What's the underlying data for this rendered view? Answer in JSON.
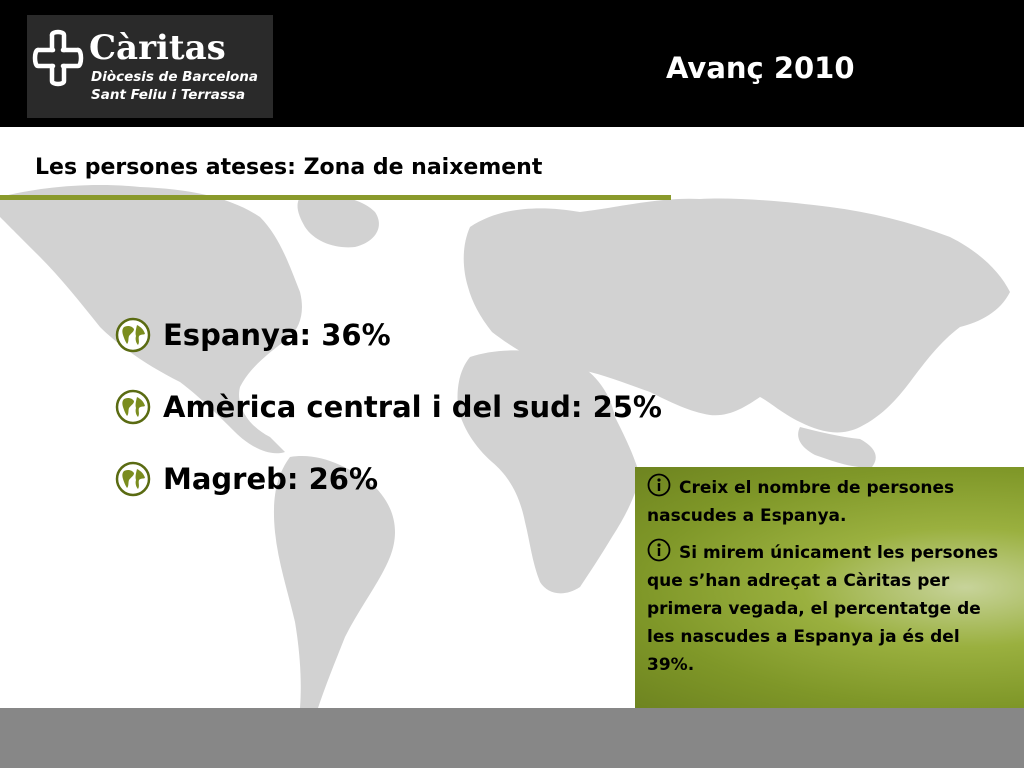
{
  "header": {
    "logo": {
      "name": "Càritas",
      "line1": "Diòcesis de Barcelona",
      "line2": "Sant Feliu i Terrassa"
    },
    "title": "Avanç 2010"
  },
  "section": {
    "subtitle": "Les persones ateses: Zona de naixement"
  },
  "bullets": [
    {
      "icon": "globe-icon",
      "text": "Espanya: 36%"
    },
    {
      "icon": "globe-icon",
      "text": "Amèrica central i del sud: 25%"
    },
    {
      "icon": "globe-icon",
      "text": "Magreb: 26%"
    }
  ],
  "info": [
    {
      "icon": "info-icon",
      "text": "Creix el nombre de persones nascudes a Espanya."
    },
    {
      "icon": "info-icon",
      "text": "Si mirem únicament les persones que s’han adreçat a Càritas per primera vegada, el percentatge de les nascudes a Espanya ja és del 39%."
    }
  ],
  "colors": {
    "header": "#000000",
    "accent": "#8a9a2c",
    "info_box": "#8fa533",
    "footer": "#878787",
    "map": "#d2d2d2"
  }
}
